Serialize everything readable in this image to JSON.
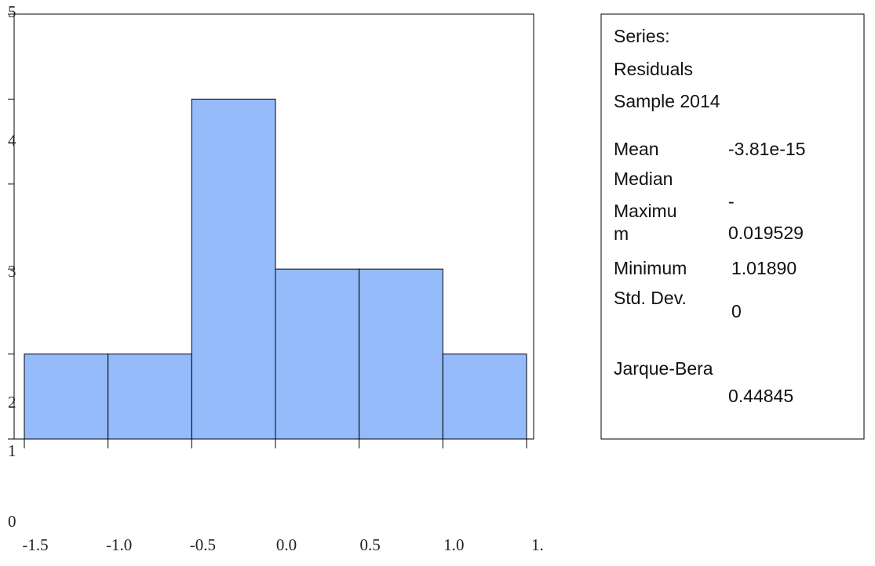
{
  "chart_data": {
    "type": "histogram",
    "bins": [
      -1.5,
      -1.0,
      -0.5,
      0.0,
      0.5,
      1.0,
      {
        "value": 1.5,
        "label": "1."
      }
    ],
    "counts": [
      1,
      1,
      4,
      2,
      2,
      1
    ],
    "color": "#95bbfb",
    "xlim": [
      -1.5,
      1.5
    ],
    "xticks": [
      {
        "value": -1.5,
        "label": "-1.5"
      },
      {
        "value": -1.0,
        "label": "-1.0"
      },
      {
        "value": -0.5,
        "label": "-0.5"
      },
      {
        "value": 0.0,
        "label": "0.0"
      },
      {
        "value": 0.5,
        "label": "0.5"
      },
      {
        "value": 1.0,
        "label": "1.0"
      },
      {
        "value": 1.5,
        "label": "1."
      }
    ],
    "ylim": [
      0,
      5
    ],
    "yticks": [
      0,
      1,
      2,
      3,
      4,
      5
    ]
  },
  "stats_box": {
    "header": [
      "Series:",
      "Residuals",
      "Sample 2014"
    ],
    "labels": [
      "Mean",
      "Median",
      "Maximu",
      "m",
      "Minimum",
      "Std. Dev.",
      "Jarque-Bera"
    ],
    "values": [
      "-3.81e-15",
      "-",
      "0.019529",
      "1.01890",
      "0",
      "0.44845"
    ]
  }
}
